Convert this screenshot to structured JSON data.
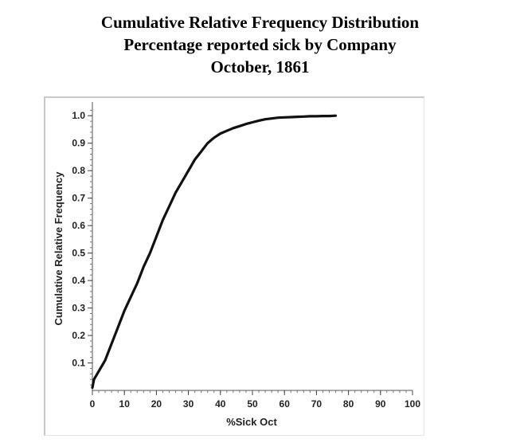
{
  "chart_data": {
    "type": "line",
    "title": [
      "Cumulative Relative Frequency Distribution",
      "Percentage reported sick by Company",
      "October, 1861"
    ],
    "xlabel": "%Sick Oct",
    "ylabel": "Cumulative Relative Frequency",
    "xlim": [
      0,
      100
    ],
    "ylim": [
      0,
      1.05
    ],
    "xticks": [
      0,
      10,
      20,
      30,
      40,
      50,
      60,
      70,
      80,
      90,
      100
    ],
    "xtick_labels": [
      "0",
      "10",
      "20",
      "30",
      "40",
      "50",
      "60",
      "70",
      "80",
      "90",
      "100"
    ],
    "yticks": [
      0.1,
      0.2,
      0.3,
      0.4,
      0.5,
      0.6,
      0.7,
      0.8,
      0.9,
      1.0
    ],
    "ytick_labels": [
      "0.1",
      "0.2",
      "0.3",
      "0.4",
      "0.5",
      "0.6",
      "0.7",
      "0.8",
      "0.9",
      "1.0"
    ],
    "grid": false,
    "series": [
      {
        "color": "#111111",
        "x": [
          0,
          0.5,
          1,
          2,
          3,
          4,
          5,
          6,
          8,
          10,
          12,
          14,
          16,
          18,
          20,
          22,
          24,
          26,
          28,
          30,
          32,
          34,
          36,
          38,
          40,
          42,
          44,
          46,
          48,
          50,
          52,
          54,
          56,
          58,
          60,
          62,
          64,
          66,
          68,
          70,
          72,
          74,
          76
        ],
        "y": [
          0.01,
          0.04,
          0.05,
          0.07,
          0.09,
          0.11,
          0.14,
          0.17,
          0.23,
          0.29,
          0.34,
          0.39,
          0.45,
          0.5,
          0.56,
          0.62,
          0.67,
          0.72,
          0.76,
          0.8,
          0.84,
          0.87,
          0.9,
          0.92,
          0.935,
          0.945,
          0.955,
          0.962,
          0.97,
          0.976,
          0.982,
          0.987,
          0.99,
          0.993,
          0.994,
          0.995,
          0.996,
          0.997,
          0.998,
          0.998,
          0.999,
          0.999,
          1.0
        ]
      }
    ]
  }
}
